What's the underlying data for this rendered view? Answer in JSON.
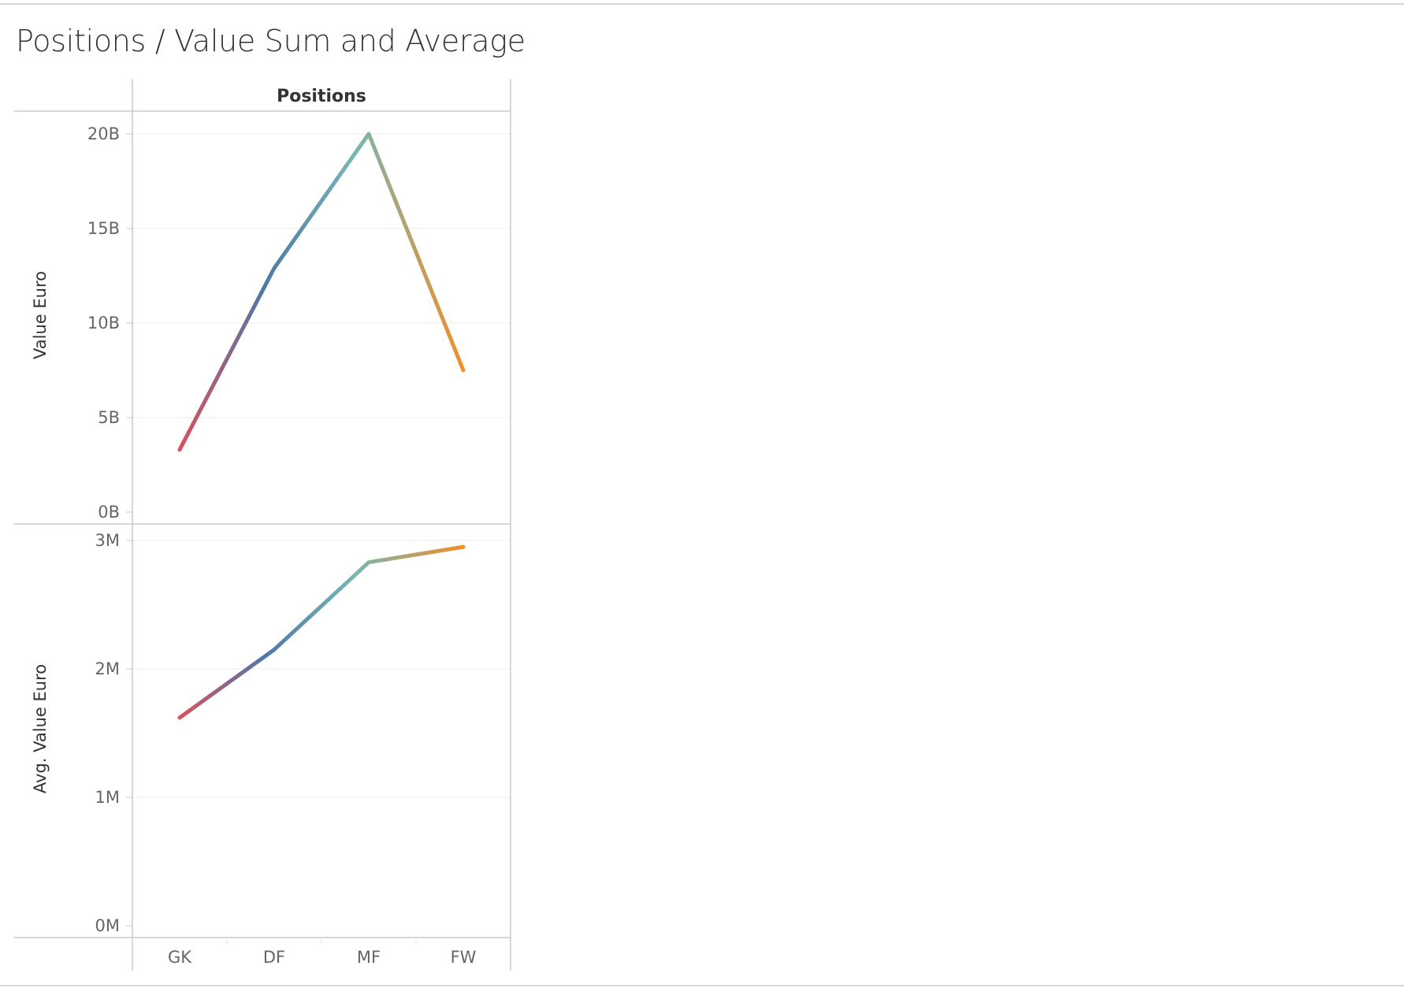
{
  "title": "Positions / Value Sum and Average",
  "chart_data": {
    "type": "line",
    "column_header": "Positions",
    "categories": [
      "GK",
      "DF",
      "MF",
      "FW"
    ],
    "panels": [
      {
        "ylabel": "Value Euro",
        "ylim": [
          0,
          20000000000
        ],
        "ticks": [
          {
            "value": 0,
            "label": "0B"
          },
          {
            "value": 5000000000,
            "label": "5B"
          },
          {
            "value": 10000000000,
            "label": "10B"
          },
          {
            "value": 15000000000,
            "label": "15B"
          },
          {
            "value": 20000000000,
            "label": "20B"
          }
        ],
        "values": [
          3300000000,
          12900000000,
          20000000000,
          7500000000
        ]
      },
      {
        "ylabel": "Avg. Value Euro",
        "ylim": [
          0,
          3000000
        ],
        "ticks": [
          {
            "value": 0,
            "label": "0M"
          },
          {
            "value": 1000000,
            "label": "1M"
          },
          {
            "value": 2000000,
            "label": "2M"
          },
          {
            "value": 3000000,
            "label": "3M"
          }
        ],
        "values": [
          1620000,
          2150000,
          2830000,
          2950000
        ]
      }
    ],
    "gradient_colors": [
      "#d9515f",
      "#4e79a7",
      "#76b7b2",
      "#f28e2b"
    ],
    "grid": true,
    "legend": "none"
  }
}
